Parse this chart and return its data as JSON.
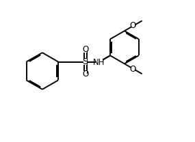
{
  "bg_color": "#ffffff",
  "line_color": "#000000",
  "line_width": 1.4,
  "font_size": 8.5,
  "figsize": [
    2.85,
    2.08
  ],
  "dpi": 100,
  "xlim": [
    0,
    10
  ],
  "ylim": [
    0,
    7.3
  ]
}
